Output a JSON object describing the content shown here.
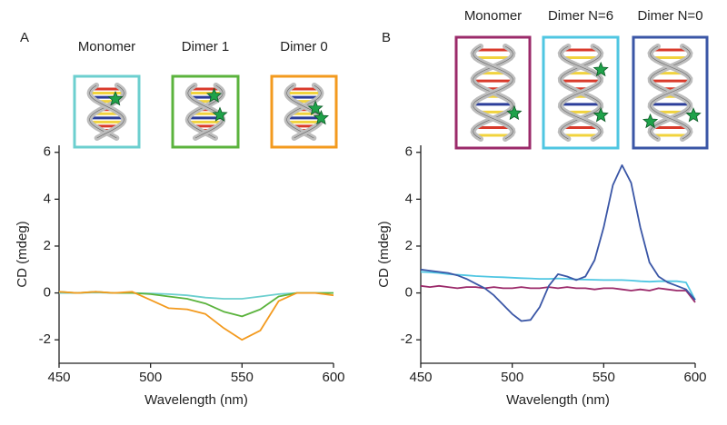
{
  "chart_data": [
    {
      "type": "line",
      "panel_label": "A",
      "x_label": "Wavelength (nm)",
      "y_label": "CD (mdeg)",
      "x": [
        450,
        460,
        470,
        480,
        490,
        500,
        510,
        520,
        530,
        540,
        550,
        560,
        570,
        580,
        590,
        600
      ],
      "series": [
        {
          "name": "Monomer",
          "color": "#6ccfcf",
          "values": [
            0,
            0,
            0.02,
            0,
            0,
            -0.02,
            -0.05,
            -0.1,
            -0.2,
            -0.25,
            -0.25,
            -0.15,
            -0.05,
            0,
            0,
            0
          ]
        },
        {
          "name": "Dimer 1",
          "color": "#5bb33d",
          "values": [
            0.05,
            0,
            0.05,
            0,
            0,
            -0.05,
            -0.15,
            -0.25,
            -0.45,
            -0.8,
            -1.0,
            -0.7,
            -0.15,
            0,
            0,
            0
          ]
        },
        {
          "name": "Dimer 0",
          "color": "#f39a1e",
          "values": [
            0.05,
            0,
            0.05,
            0,
            0.05,
            -0.3,
            -0.65,
            -0.7,
            -0.9,
            -1.5,
            -2.0,
            -1.6,
            -0.35,
            0,
            0,
            -0.1
          ]
        }
      ],
      "xlim": [
        450,
        600
      ],
      "ylim": [
        -3,
        6.3
      ],
      "xticks": [
        450,
        500,
        550,
        600
      ],
      "yticks": [
        -2,
        0,
        2,
        4,
        6
      ]
    },
    {
      "type": "line",
      "panel_label": "B",
      "x_label": "Wavelength (nm)",
      "y_label": "CD (mdeg)",
      "x": [
        450,
        455,
        460,
        465,
        470,
        475,
        480,
        485,
        490,
        495,
        500,
        505,
        510,
        515,
        520,
        525,
        530,
        535,
        540,
        545,
        550,
        555,
        560,
        565,
        570,
        575,
        580,
        585,
        590,
        595,
        600
      ],
      "series": [
        {
          "name": "Monomer",
          "color": "#9b2a6a",
          "values": [
            0.3,
            0.25,
            0.3,
            0.25,
            0.2,
            0.25,
            0.25,
            0.2,
            0.25,
            0.2,
            0.2,
            0.25,
            0.2,
            0.2,
            0.25,
            0.2,
            0.25,
            0.2,
            0.2,
            0.15,
            0.2,
            0.2,
            0.15,
            0.1,
            0.15,
            0.1,
            0.2,
            0.15,
            0.1,
            0.1,
            -0.4
          ]
        },
        {
          "name": "Dimer N=6",
          "color": "#4fc6e2",
          "values": [
            0.9,
            0.88,
            0.85,
            0.8,
            0.78,
            0.75,
            0.72,
            0.7,
            0.68,
            0.67,
            0.65,
            0.63,
            0.62,
            0.6,
            0.6,
            0.62,
            0.6,
            0.58,
            0.57,
            0.56,
            0.55,
            0.55,
            0.55,
            0.53,
            0.5,
            0.48,
            0.5,
            0.5,
            0.5,
            0.45,
            -0.3
          ]
        },
        {
          "name": "Dimer N=0",
          "color": "#3a56a6",
          "values": [
            1.0,
            0.95,
            0.9,
            0.85,
            0.75,
            0.6,
            0.4,
            0.2,
            -0.1,
            -0.5,
            -0.9,
            -1.2,
            -1.15,
            -0.6,
            0.3,
            0.8,
            0.7,
            0.55,
            0.7,
            1.4,
            2.8,
            4.6,
            5.45,
            4.7,
            2.8,
            1.3,
            0.7,
            0.45,
            0.3,
            0.15,
            -0.3
          ]
        }
      ],
      "xlim": [
        450,
        600
      ],
      "ylim": [
        -3,
        6.3
      ],
      "xticks": [
        450,
        500,
        550,
        600
      ],
      "yticks": [
        -2,
        0,
        2,
        4,
        6
      ]
    }
  ]
}
